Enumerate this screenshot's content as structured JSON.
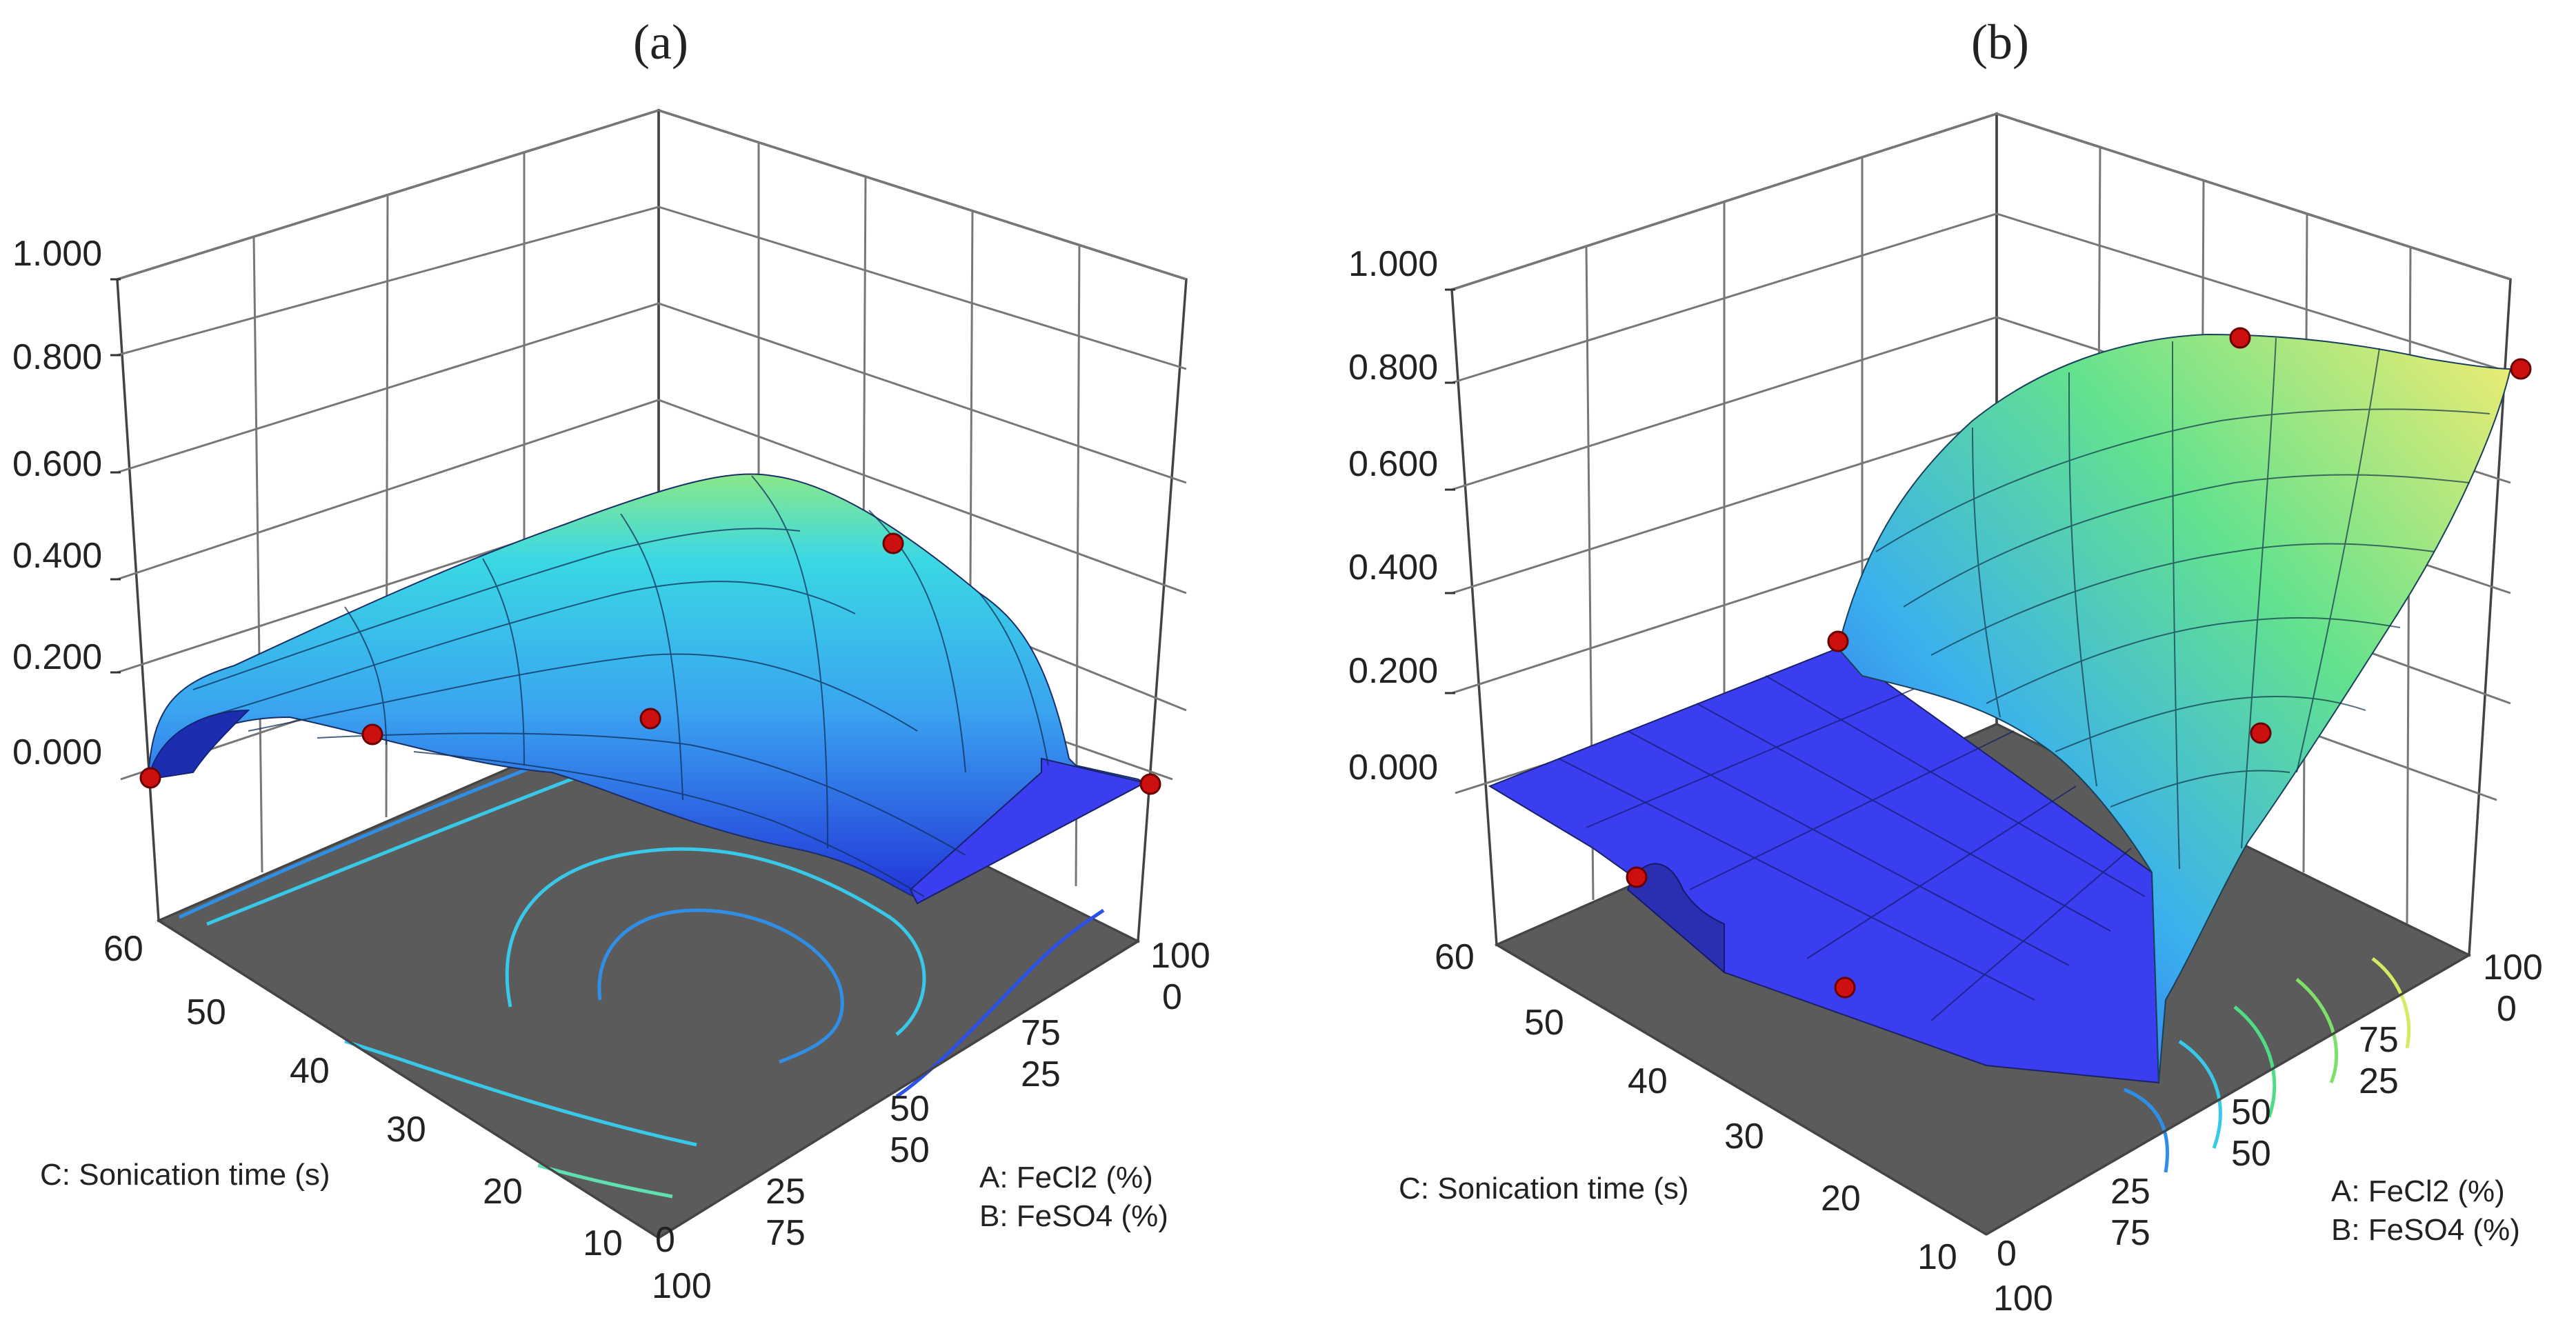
{
  "chart_data": [
    {
      "type": "surface3d",
      "title": "(a)",
      "zlabel": "",
      "z_ticks": [
        "0.000",
        "0.200",
        "0.400",
        "0.600",
        "0.800",
        "1.000"
      ],
      "zlim": [
        0,
        1
      ],
      "left_axis": {
        "label": "C: Sonication time (s)",
        "ticks": [
          "60",
          "50",
          "40",
          "30",
          "20",
          "10"
        ],
        "range": [
          10,
          60
        ]
      },
      "right_axis": {
        "label_a": "A: FeCl2 (%)",
        "label_b": "B: FeSO4 (%)",
        "ticks_a": [
          "0",
          "25",
          "50",
          "75",
          "100"
        ],
        "ticks_b": [
          "100",
          "75",
          "50",
          "25",
          "0"
        ],
        "range_a": [
          0,
          100
        ]
      },
      "surface_description": "Dome-shaped surface peaking near 0.45 along the high-FeCl2 / long-sonication region, dipping toward ~0.15 in the centre and dropping to 0 near A = 75-100 %",
      "design_points": [
        {
          "C": 60,
          "A": 0,
          "z": 0.0
        },
        {
          "C": 60,
          "A": 50,
          "z": 0.0
        },
        {
          "C": 35,
          "A": 50,
          "z": 0.1
        },
        {
          "C": 10,
          "A": 50,
          "z": 0.38
        },
        {
          "C": 10,
          "A": 100,
          "z": 0.0
        }
      ],
      "contour_levels": [
        0.05,
        0.15,
        0.25,
        0.35
      ],
      "colors": {
        "low": "#2a35e6",
        "mid": "#34d5e8",
        "high": "#9bea6a",
        "floor": "#5a5a5a",
        "point": "#cc1010"
      }
    },
    {
      "type": "surface3d",
      "title": "(b)",
      "zlabel": "",
      "z_ticks": [
        "0.000",
        "0.200",
        "0.400",
        "0.600",
        "0.800",
        "1.000"
      ],
      "zlim": [
        0,
        1
      ],
      "left_axis": {
        "label": "C: Sonication time (s)",
        "ticks": [
          "60",
          "50",
          "40",
          "30",
          "20",
          "10"
        ],
        "range": [
          10,
          60
        ]
      },
      "right_axis": {
        "label_a": "A: FeCl2 (%)",
        "label_b": "B: FeSO4 (%)",
        "ticks_a": [
          "0",
          "25",
          "50",
          "75",
          "100"
        ],
        "ticks_b": [
          "100",
          "75",
          "50",
          "25",
          "0"
        ],
        "range_a": [
          0,
          100
        ]
      },
      "surface_description": "Flat zero plane over most of the domain; sharp rise toward high FeCl2 (A > 60 %), reaching ~0.8 at A = 100 %, independent of sonication time",
      "design_points": [
        {
          "C": 60,
          "A": 100,
          "z": 0.83
        },
        {
          "C": 10,
          "A": 100,
          "z": 0.82
        },
        {
          "C": 60,
          "A": 50,
          "z": 0.22
        },
        {
          "C": 35,
          "A": 100,
          "z": 0.0
        },
        {
          "C": 60,
          "A": 0,
          "z": 0.0
        },
        {
          "C": 35,
          "A": 0,
          "z": 0.0
        }
      ],
      "contour_levels": [
        0.1,
        0.3,
        0.5,
        0.7
      ],
      "colors": {
        "low": "#3a3ef0",
        "mid": "#3bd0e6",
        "high": "#e6ee6a",
        "floor": "#5a5a5a",
        "point": "#cc1010"
      }
    }
  ]
}
